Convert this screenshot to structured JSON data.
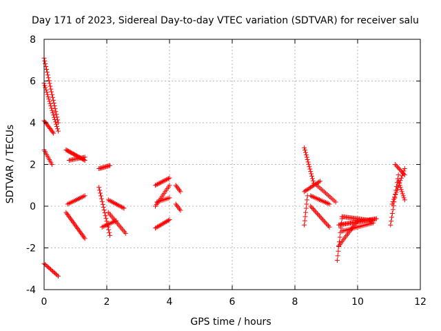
{
  "chart_data": {
    "type": "scatter",
    "title": "Day 171 of 2023, Sidereal Day-to-day VTEC variation (SDTVAR) for receiver salu",
    "xlabel": "GPS time / hours",
    "ylabel": "SDTVAR / TECUs",
    "xlim": [
      0,
      12
    ],
    "ylim": [
      -4,
      8
    ],
    "xticks": [
      0,
      2,
      4,
      6,
      8,
      10,
      12
    ],
    "yticks": [
      -4,
      -2,
      0,
      2,
      4,
      6,
      8
    ],
    "xtick_labels": [
      "0",
      "2",
      "4",
      "6",
      "8",
      "10",
      "12"
    ],
    "ytick_labels": [
      "-4",
      "-2",
      "0",
      "2",
      "4",
      "6",
      "8"
    ],
    "grid": true,
    "marker": "+",
    "marker_color": "#ff0000",
    "segments": [
      {
        "x0": 0.0,
        "y0": 7.1,
        "x1": 0.45,
        "y1": 4.0,
        "n": 24
      },
      {
        "x0": 0.0,
        "y0": 5.9,
        "x1": 0.45,
        "y1": 3.6,
        "n": 22
      },
      {
        "x0": 0.0,
        "y0": 4.1,
        "x1": 0.3,
        "y1": 3.5,
        "n": 12
      },
      {
        "x0": 0.0,
        "y0": 2.7,
        "x1": 0.25,
        "y1": 2.0,
        "n": 10
      },
      {
        "x0": 0.0,
        "y0": -2.75,
        "x1": 0.45,
        "y1": -3.35,
        "n": 14
      },
      {
        "x0": 0.7,
        "y0": 2.7,
        "x1": 1.3,
        "y1": 2.2,
        "n": 22
      },
      {
        "x0": 0.8,
        "y0": 2.2,
        "x1": 1.3,
        "y1": 2.35,
        "n": 14
      },
      {
        "x0": 0.75,
        "y0": 0.1,
        "x1": 1.3,
        "y1": 0.5,
        "n": 14
      },
      {
        "x0": 0.7,
        "y0": -0.3,
        "x1": 1.3,
        "y1": -1.55,
        "n": 22
      },
      {
        "x0": 1.75,
        "y0": 1.8,
        "x1": 2.1,
        "y1": 1.95,
        "n": 12
      },
      {
        "x0": 1.75,
        "y0": 0.9,
        "x1": 2.1,
        "y1": -1.4,
        "n": 18
      },
      {
        "x0": 1.85,
        "y0": -1.0,
        "x1": 2.3,
        "y1": -0.7,
        "n": 12
      },
      {
        "x0": 2.05,
        "y0": 0.3,
        "x1": 2.55,
        "y1": -0.1,
        "n": 14
      },
      {
        "x0": 2.05,
        "y0": -0.3,
        "x1": 2.6,
        "y1": -1.3,
        "n": 16
      },
      {
        "x0": 3.55,
        "y0": 1.0,
        "x1": 4.0,
        "y1": 1.35,
        "n": 14
      },
      {
        "x0": 3.55,
        "y0": 0.0,
        "x1": 4.0,
        "y1": 1.0,
        "n": 14
      },
      {
        "x0": 3.55,
        "y0": -1.05,
        "x1": 4.0,
        "y1": -0.65,
        "n": 14
      },
      {
        "x0": 3.6,
        "y0": 0.2,
        "x1": 4.0,
        "y1": 0.4,
        "n": 10
      },
      {
        "x0": 4.2,
        "y0": 1.0,
        "x1": 4.35,
        "y1": 0.7,
        "n": 6
      },
      {
        "x0": 4.2,
        "y0": 0.1,
        "x1": 4.35,
        "y1": -0.2,
        "n": 6
      },
      {
        "x0": 8.3,
        "y0": 2.8,
        "x1": 8.6,
        "y1": 1.1,
        "n": 16
      },
      {
        "x0": 8.3,
        "y0": 0.7,
        "x1": 8.8,
        "y1": 1.2,
        "n": 14
      },
      {
        "x0": 8.3,
        "y0": -0.9,
        "x1": 8.4,
        "y1": 0.5,
        "n": 8
      },
      {
        "x0": 8.5,
        "y0": 0.5,
        "x1": 9.1,
        "y1": 0.1,
        "n": 16
      },
      {
        "x0": 8.5,
        "y0": 0.0,
        "x1": 9.1,
        "y1": -1.0,
        "n": 18
      },
      {
        "x0": 8.7,
        "y0": 1.0,
        "x1": 9.3,
        "y1": 0.2,
        "n": 14
      },
      {
        "x0": 9.35,
        "y0": -2.6,
        "x1": 9.5,
        "y1": -0.6,
        "n": 10
      },
      {
        "x0": 9.4,
        "y0": -0.9,
        "x1": 10.6,
        "y1": -0.6,
        "n": 40
      },
      {
        "x0": 9.4,
        "y0": -1.9,
        "x1": 10.0,
        "y1": -0.7,
        "n": 18
      },
      {
        "x0": 9.5,
        "y0": -0.5,
        "x1": 10.5,
        "y1": -0.7,
        "n": 30
      },
      {
        "x0": 9.5,
        "y0": -1.2,
        "x1": 10.5,
        "y1": -0.8,
        "n": 24
      },
      {
        "x0": 11.05,
        "y0": -0.9,
        "x1": 11.3,
        "y1": 1.5,
        "n": 14
      },
      {
        "x0": 11.1,
        "y0": 0.1,
        "x1": 11.5,
        "y1": 1.8,
        "n": 16
      },
      {
        "x0": 11.2,
        "y0": 2.0,
        "x1": 11.5,
        "y1": 1.5,
        "n": 10
      },
      {
        "x0": 11.3,
        "y0": 1.2,
        "x1": 11.5,
        "y1": 0.3,
        "n": 10
      }
    ]
  }
}
